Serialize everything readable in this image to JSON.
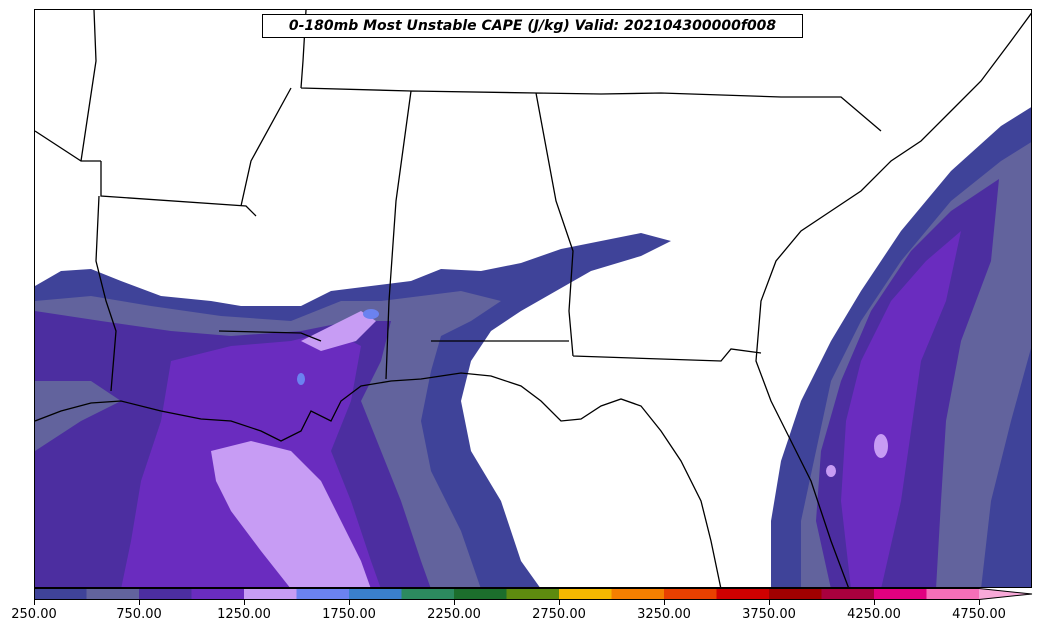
{
  "title": "0-180mb Most Unstable CAPE (J/kg) Valid: 202104300000f008",
  "colorbar": {
    "levels": [
      250,
      500,
      750,
      1000,
      1250,
      1500,
      1750,
      2000,
      2250,
      2500,
      2750,
      3000,
      3250,
      3500,
      3750,
      4000,
      4250,
      4500,
      4750,
      5000
    ],
    "colors": [
      "#3f4399",
      "#62639d",
      "#4c2ea0",
      "#6a2cbf",
      "#c79cf4",
      "#6b82f0",
      "#3a7fcb",
      "#2c8a5f",
      "#1c6e2c",
      "#5e8b0f",
      "#f6b800",
      "#f57f00",
      "#e94000",
      "#cf0000",
      "#a00000",
      "#a8003e",
      "#e20080",
      "#f66fb8"
    ],
    "extend_color": "#f8a9d8",
    "tick_labels": [
      "250.00",
      "750.00",
      "1250.00",
      "1750.00",
      "2250.00",
      "2750.00",
      "3250.00",
      "3750.00",
      "4250.00",
      "4750.00"
    ]
  },
  "map": {
    "field": "CAPE",
    "units": "J/kg",
    "region": "Southeastern United States and Gulf of Mexico",
    "boundaries": [
      "coastline",
      "state-lines"
    ]
  }
}
